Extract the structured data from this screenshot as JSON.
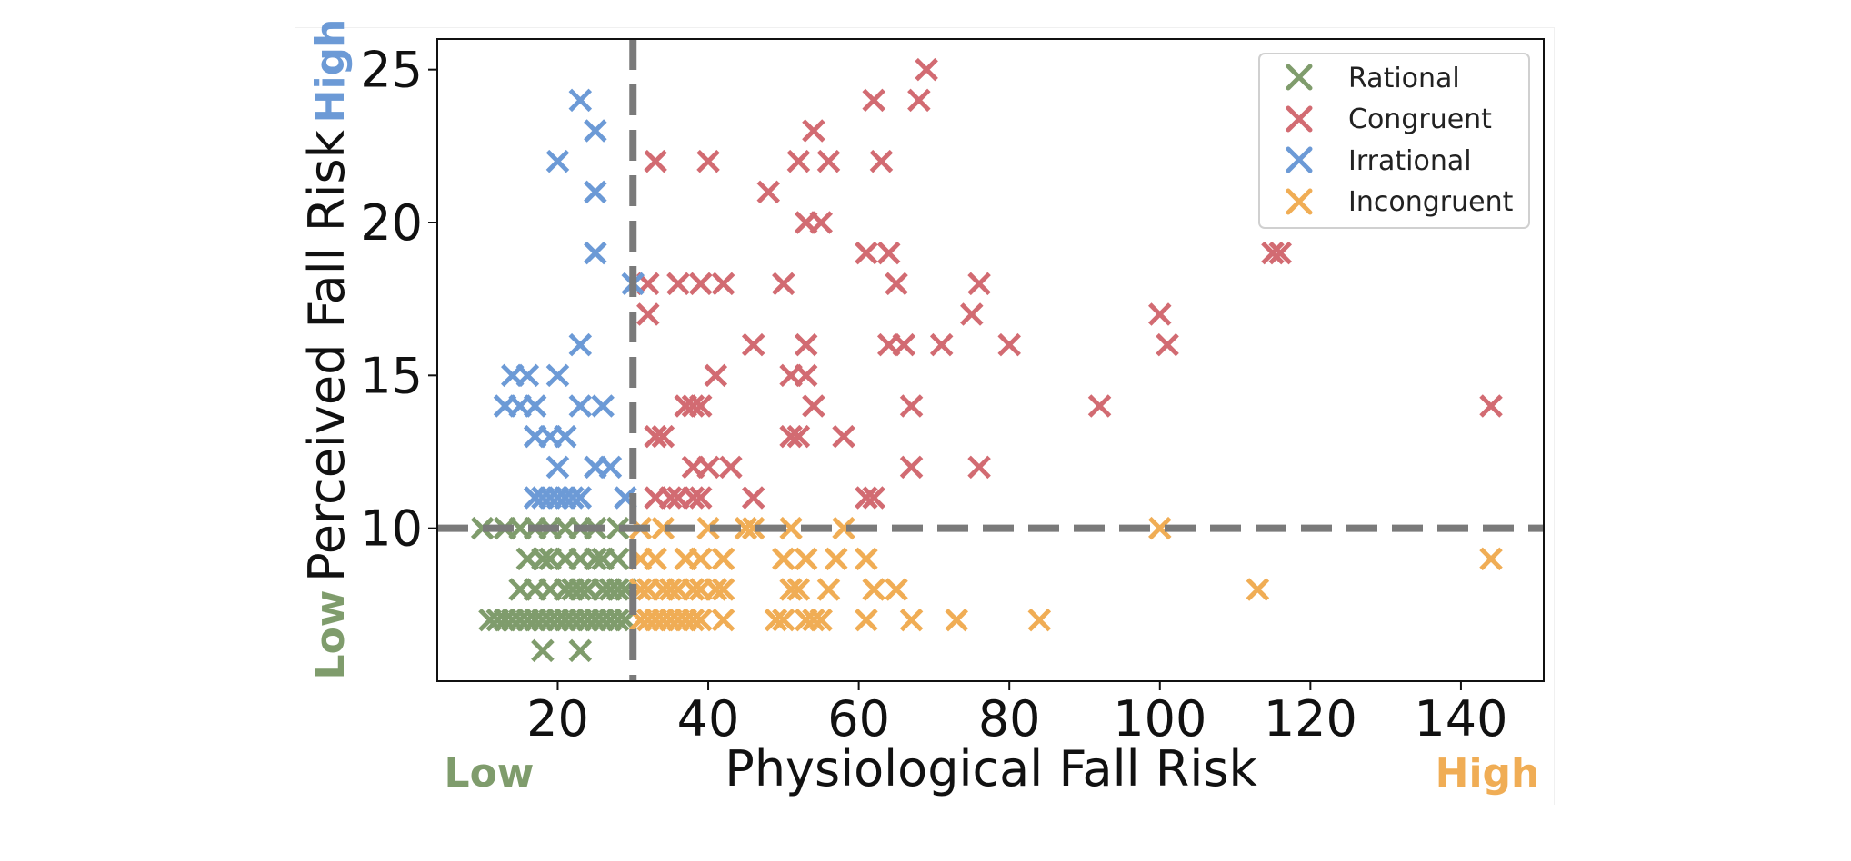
{
  "chart_data": {
    "type": "scatter",
    "title": "",
    "xlabel": "Physiological Fall Risk",
    "ylabel": "Perceived Fall Risk",
    "xlim": [
      4,
      151
    ],
    "ylim": [
      5,
      26
    ],
    "xticks": [
      20,
      40,
      60,
      80,
      100,
      120,
      140
    ],
    "yticks": [
      10,
      15,
      20,
      25
    ],
    "grid": false,
    "legend_position": "top-right",
    "threshold_lines": {
      "x": 30,
      "y": 10
    },
    "corner_labels": {
      "x_low": "Low",
      "x_high": "High",
      "y_low": "Low",
      "y_high": "High"
    },
    "series": [
      {
        "name": "Rational",
        "color": "#7f9c6c",
        "points": [
          [
            10,
            10
          ],
          [
            13,
            10
          ],
          [
            15,
            10
          ],
          [
            17,
            10
          ],
          [
            19,
            10
          ],
          [
            21,
            10
          ],
          [
            23,
            10
          ],
          [
            25,
            10
          ],
          [
            28,
            10
          ],
          [
            16,
            9
          ],
          [
            18,
            9
          ],
          [
            19,
            9
          ],
          [
            21,
            9
          ],
          [
            23,
            9
          ],
          [
            25,
            9
          ],
          [
            26,
            9
          ],
          [
            28,
            9
          ],
          [
            15,
            8
          ],
          [
            17,
            8
          ],
          [
            19,
            8
          ],
          [
            21,
            8
          ],
          [
            22,
            8
          ],
          [
            23,
            8
          ],
          [
            24,
            8
          ],
          [
            26,
            8
          ],
          [
            27,
            8
          ],
          [
            28,
            8
          ],
          [
            29,
            8
          ],
          [
            11,
            7
          ],
          [
            12,
            7
          ],
          [
            13,
            7
          ],
          [
            14,
            7
          ],
          [
            15,
            7
          ],
          [
            16,
            7
          ],
          [
            17,
            7
          ],
          [
            18,
            7
          ],
          [
            19,
            7
          ],
          [
            20,
            7
          ],
          [
            21,
            7
          ],
          [
            22,
            7
          ],
          [
            23,
            7
          ],
          [
            24,
            7
          ],
          [
            25,
            7
          ],
          [
            26,
            7
          ],
          [
            27,
            7
          ],
          [
            28,
            7
          ],
          [
            29,
            7
          ],
          [
            18,
            6
          ],
          [
            23,
            6
          ]
        ]
      },
      {
        "name": "Congruent",
        "color": "#d26b72",
        "points": [
          [
            69,
            25
          ],
          [
            62,
            24
          ],
          [
            68,
            24
          ],
          [
            54,
            23
          ],
          [
            33,
            22
          ],
          [
            40,
            22
          ],
          [
            52,
            22
          ],
          [
            56,
            22
          ],
          [
            63,
            22
          ],
          [
            48,
            21
          ],
          [
            53,
            20
          ],
          [
            55,
            20
          ],
          [
            61,
            19
          ],
          [
            64,
            19
          ],
          [
            115,
            19
          ],
          [
            116,
            19
          ],
          [
            32,
            18
          ],
          [
            36,
            18
          ],
          [
            39,
            18
          ],
          [
            42,
            18
          ],
          [
            50,
            18
          ],
          [
            65,
            18
          ],
          [
            76,
            18
          ],
          [
            32,
            17
          ],
          [
            75,
            17
          ],
          [
            100,
            17
          ],
          [
            46,
            16
          ],
          [
            53,
            16
          ],
          [
            64,
            16
          ],
          [
            66,
            16
          ],
          [
            71,
            16
          ],
          [
            80,
            16
          ],
          [
            101,
            16
          ],
          [
            41,
            15
          ],
          [
            51,
            15
          ],
          [
            53,
            15
          ],
          [
            37,
            14
          ],
          [
            38,
            14
          ],
          [
            39,
            14
          ],
          [
            54,
            14
          ],
          [
            67,
            14
          ],
          [
            92,
            14
          ],
          [
            144,
            14
          ],
          [
            33,
            13
          ],
          [
            34,
            13
          ],
          [
            51,
            13
          ],
          [
            52,
            13
          ],
          [
            58,
            13
          ],
          [
            38,
            12
          ],
          [
            40,
            12
          ],
          [
            43,
            12
          ],
          [
            67,
            12
          ],
          [
            76,
            12
          ],
          [
            33,
            11
          ],
          [
            35,
            11
          ],
          [
            36,
            11
          ],
          [
            38,
            11
          ],
          [
            39,
            11
          ],
          [
            46,
            11
          ],
          [
            61,
            11
          ],
          [
            62,
            11
          ]
        ]
      },
      {
        "name": "Irrational",
        "color": "#6c9ad6",
        "points": [
          [
            23,
            24
          ],
          [
            25,
            23
          ],
          [
            20,
            22
          ],
          [
            25,
            21
          ],
          [
            25,
            19
          ],
          [
            30,
            18
          ],
          [
            23,
            16
          ],
          [
            14,
            15
          ],
          [
            16,
            15
          ],
          [
            20,
            15
          ],
          [
            13,
            14
          ],
          [
            15,
            14
          ],
          [
            17,
            14
          ],
          [
            23,
            14
          ],
          [
            26,
            14
          ],
          [
            17,
            13
          ],
          [
            19,
            13
          ],
          [
            21,
            13
          ],
          [
            20,
            12
          ],
          [
            25,
            12
          ],
          [
            27,
            12
          ],
          [
            17,
            11
          ],
          [
            18,
            11
          ],
          [
            19,
            11
          ],
          [
            20,
            11
          ],
          [
            21,
            11
          ],
          [
            22,
            11
          ],
          [
            23,
            11
          ],
          [
            29,
            11
          ]
        ]
      },
      {
        "name": "Incongruent",
        "color": "#f0ad55",
        "points": [
          [
            31,
            10
          ],
          [
            34,
            10
          ],
          [
            40,
            10
          ],
          [
            45,
            10
          ],
          [
            46,
            10
          ],
          [
            51,
            10
          ],
          [
            58,
            10
          ],
          [
            100,
            10
          ],
          [
            31,
            9
          ],
          [
            33,
            9
          ],
          [
            37,
            9
          ],
          [
            39,
            9
          ],
          [
            42,
            9
          ],
          [
            50,
            9
          ],
          [
            53,
            9
          ],
          [
            57,
            9
          ],
          [
            61,
            9
          ],
          [
            144,
            9
          ],
          [
            31,
            8
          ],
          [
            32,
            8
          ],
          [
            34,
            8
          ],
          [
            35,
            8
          ],
          [
            36,
            8
          ],
          [
            38,
            8
          ],
          [
            39,
            8
          ],
          [
            41,
            8
          ],
          [
            42,
            8
          ],
          [
            51,
            8
          ],
          [
            52,
            8
          ],
          [
            56,
            8
          ],
          [
            62,
            8
          ],
          [
            65,
            8
          ],
          [
            113,
            8
          ],
          [
            31,
            7
          ],
          [
            32,
            7
          ],
          [
            33,
            7
          ],
          [
            34,
            7
          ],
          [
            35,
            7
          ],
          [
            36,
            7
          ],
          [
            37,
            7
          ],
          [
            38,
            7
          ],
          [
            39,
            7
          ],
          [
            42,
            7
          ],
          [
            49,
            7
          ],
          [
            50,
            7
          ],
          [
            53,
            7
          ],
          [
            54,
            7
          ],
          [
            55,
            7
          ],
          [
            61,
            7
          ],
          [
            67,
            7
          ],
          [
            73,
            7
          ],
          [
            84,
            7
          ]
        ]
      }
    ]
  }
}
